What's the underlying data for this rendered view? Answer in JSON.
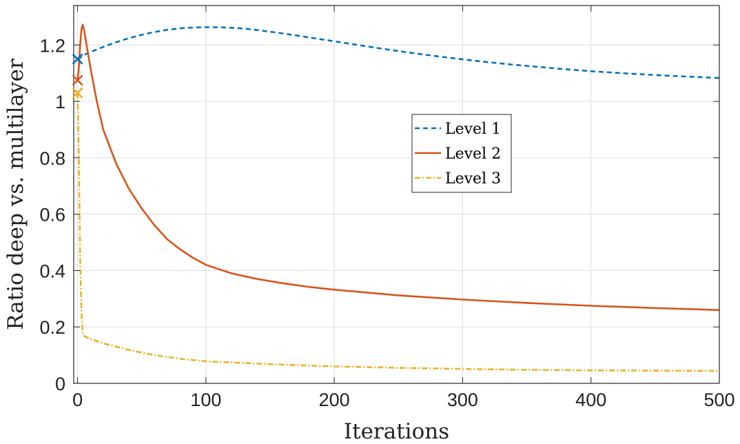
{
  "chart_data": {
    "type": "line",
    "title": "",
    "xlabel": "Iterations",
    "ylabel": "Ratio deep vs. multilayer",
    "xlim": [
      -3,
      500
    ],
    "ylim": [
      0,
      1.34
    ],
    "grid": true,
    "legend_position": "center-right",
    "x_ticks": [
      "0",
      "100",
      "200",
      "300",
      "400",
      "500"
    ],
    "y_ticks": [
      "0",
      "0.2",
      "0.4",
      "0.6",
      "0.8",
      "1",
      "1.2"
    ],
    "series": [
      {
        "name": "Level 1",
        "color": "#0072BD",
        "style": "dashed",
        "start_marker": {
          "x": 0,
          "y": 1.15
        },
        "x": [
          0,
          2,
          5,
          10,
          20,
          30,
          40,
          50,
          60,
          70,
          80,
          90,
          100,
          110,
          120,
          130,
          140,
          150,
          160,
          170,
          180,
          190,
          200,
          220,
          240,
          260,
          280,
          300,
          320,
          340,
          360,
          380,
          400,
          420,
          440,
          460,
          480,
          500
        ],
        "y": [
          1.15,
          1.155,
          1.165,
          1.175,
          1.193,
          1.21,
          1.224,
          1.236,
          1.246,
          1.254,
          1.259,
          1.262,
          1.263,
          1.263,
          1.261,
          1.258,
          1.253,
          1.247,
          1.241,
          1.234,
          1.227,
          1.22,
          1.213,
          1.199,
          1.185,
          1.172,
          1.16,
          1.149,
          1.139,
          1.13,
          1.122,
          1.114,
          1.107,
          1.101,
          1.096,
          1.091,
          1.087,
          1.083
        ]
      },
      {
        "name": "Level 2",
        "color": "#D95319",
        "style": "solid",
        "start_marker": {
          "x": 0,
          "y": 1.075
        },
        "x": [
          0,
          1,
          2,
          3,
          4,
          5,
          7,
          10,
          15,
          20,
          30,
          40,
          50,
          60,
          70,
          80,
          90,
          100,
          120,
          140,
          160,
          180,
          200,
          250,
          300,
          350,
          400,
          450,
          500
        ],
        "y": [
          1.075,
          1.12,
          1.2,
          1.255,
          1.272,
          1.255,
          1.2,
          1.12,
          1.0,
          0.9,
          0.78,
          0.69,
          0.62,
          0.56,
          0.51,
          0.475,
          0.445,
          0.42,
          0.39,
          0.37,
          0.355,
          0.342,
          0.332,
          0.312,
          0.297,
          0.285,
          0.275,
          0.267,
          0.26
        ]
      },
      {
        "name": "Level 3",
        "color": "#EDB120",
        "style": "dashdot",
        "start_marker": {
          "x": 0,
          "y": 1.03
        },
        "x": [
          0,
          1,
          2,
          3,
          4,
          5,
          10,
          20,
          40,
          60,
          80,
          100,
          150,
          200,
          250,
          300,
          350,
          400,
          450,
          500
        ],
        "y": [
          1.03,
          0.8,
          0.45,
          0.25,
          0.18,
          0.168,
          0.158,
          0.142,
          0.118,
          0.1,
          0.087,
          0.078,
          0.068,
          0.06,
          0.055,
          0.051,
          0.048,
          0.046,
          0.045,
          0.044
        ]
      }
    ]
  }
}
